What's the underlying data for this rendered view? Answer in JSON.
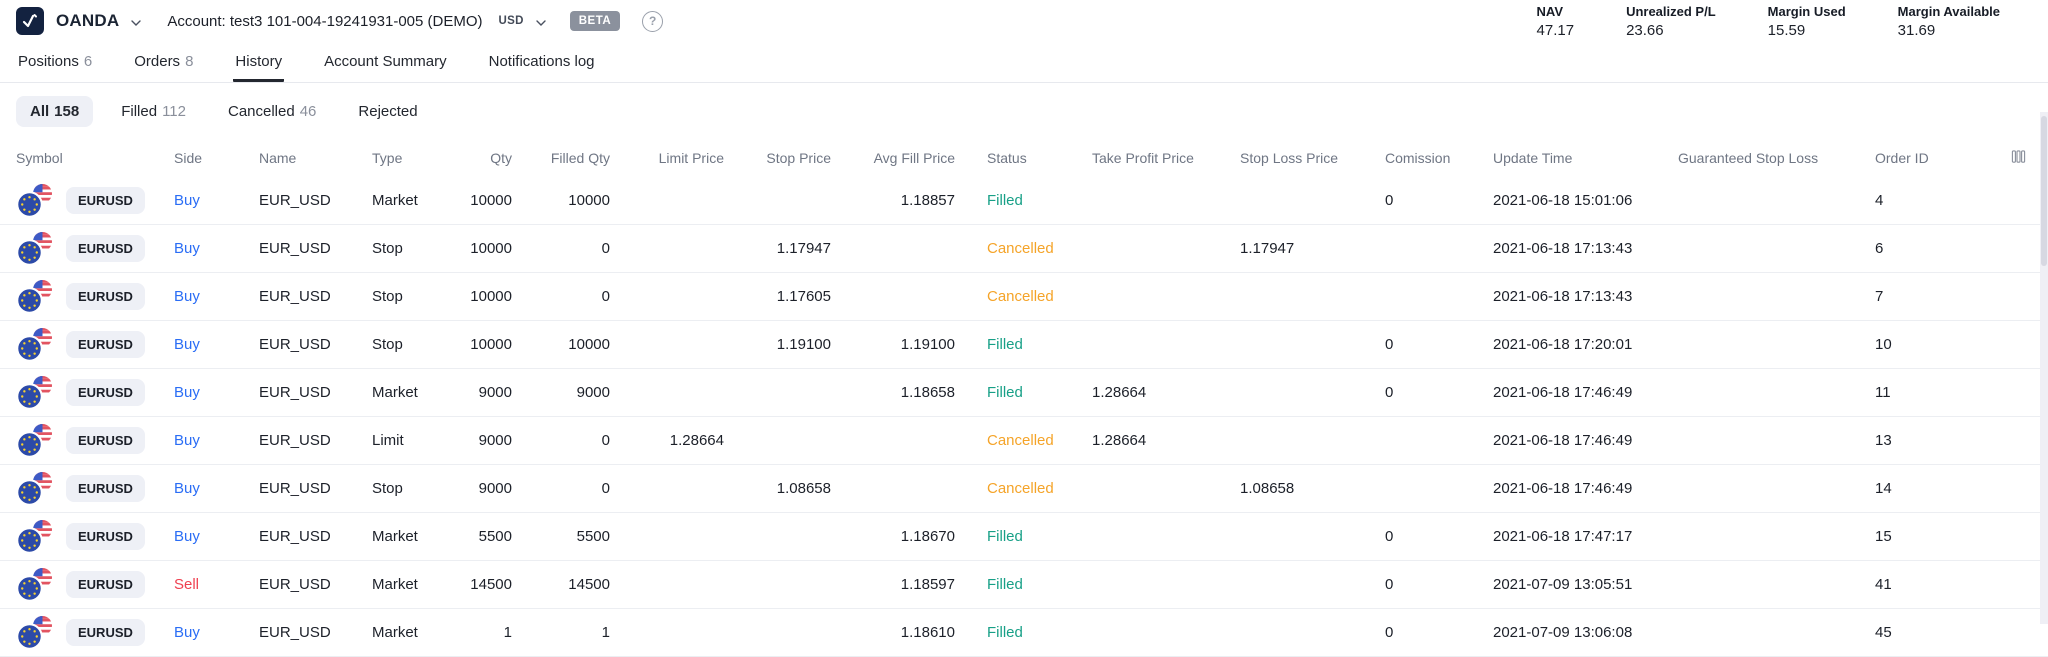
{
  "header": {
    "brand": "OANDA",
    "account_label": "Account: test3 101-004-19241931-005 (DEMO)",
    "currency": "USD",
    "beta_badge": "BETA",
    "help_icon": "?",
    "stats": [
      {
        "label": "NAV",
        "value": "47.17"
      },
      {
        "label": "Unrealized P/L",
        "value": "23.66"
      },
      {
        "label": "Margin Used",
        "value": "15.59"
      },
      {
        "label": "Margin Available",
        "value": "31.69"
      }
    ]
  },
  "tabs": [
    {
      "label": "Positions",
      "count": "6",
      "active": false
    },
    {
      "label": "Orders",
      "count": "8",
      "active": false
    },
    {
      "label": "History",
      "count": "",
      "active": true
    },
    {
      "label": "Account Summary",
      "count": "",
      "active": false
    },
    {
      "label": "Notifications log",
      "count": "",
      "active": false
    }
  ],
  "filters": [
    {
      "label": "All",
      "count": "158",
      "active": true
    },
    {
      "label": "Filled",
      "count": "112",
      "active": false
    },
    {
      "label": "Cancelled",
      "count": "46",
      "active": false
    },
    {
      "label": "Rejected",
      "count": "",
      "active": false
    }
  ],
  "table": {
    "columns": [
      "Symbol",
      "Side",
      "Name",
      "Type",
      "Qty",
      "Filled Qty",
      "Limit Price",
      "Stop Price",
      "Avg Fill Price",
      "Status",
      "Take Profit Price",
      "Stop Loss Price",
      "Comission",
      "Update Time",
      "Guaranteed Stop Loss",
      "Order ID"
    ],
    "columns_icon": "column-settings-icon",
    "rows": [
      {
        "symbol": "EURUSD",
        "side": "Buy",
        "name": "EUR_USD",
        "type": "Market",
        "qty": "10000",
        "filled_qty": "10000",
        "limit_price": "",
        "stop_price": "",
        "avg_fill_price": "1.18857",
        "status": "Filled",
        "take_profit_price": "",
        "stop_loss_price": "",
        "comission": "0",
        "update_time": "2021-06-18 15:01:06",
        "guaranteed_stop_loss": "",
        "order_id": "4"
      },
      {
        "symbol": "EURUSD",
        "side": "Buy",
        "name": "EUR_USD",
        "type": "Stop",
        "qty": "10000",
        "filled_qty": "0",
        "limit_price": "",
        "stop_price": "1.17947",
        "avg_fill_price": "",
        "status": "Cancelled",
        "take_profit_price": "",
        "stop_loss_price": "1.17947",
        "comission": "",
        "update_time": "2021-06-18 17:13:43",
        "guaranteed_stop_loss": "",
        "order_id": "6"
      },
      {
        "symbol": "EURUSD",
        "side": "Buy",
        "name": "EUR_USD",
        "type": "Stop",
        "qty": "10000",
        "filled_qty": "0",
        "limit_price": "",
        "stop_price": "1.17605",
        "avg_fill_price": "",
        "status": "Cancelled",
        "take_profit_price": "",
        "stop_loss_price": "",
        "comission": "",
        "update_time": "2021-06-18 17:13:43",
        "guaranteed_stop_loss": "",
        "order_id": "7"
      },
      {
        "symbol": "EURUSD",
        "side": "Buy",
        "name": "EUR_USD",
        "type": "Stop",
        "qty": "10000",
        "filled_qty": "10000",
        "limit_price": "",
        "stop_price": "1.19100",
        "avg_fill_price": "1.19100",
        "status": "Filled",
        "take_profit_price": "",
        "stop_loss_price": "",
        "comission": "0",
        "update_time": "2021-06-18 17:20:01",
        "guaranteed_stop_loss": "",
        "order_id": "10"
      },
      {
        "symbol": "EURUSD",
        "side": "Buy",
        "name": "EUR_USD",
        "type": "Market",
        "qty": "9000",
        "filled_qty": "9000",
        "limit_price": "",
        "stop_price": "",
        "avg_fill_price": "1.18658",
        "status": "Filled",
        "take_profit_price": "1.28664",
        "stop_loss_price": "",
        "comission": "0",
        "update_time": "2021-06-18 17:46:49",
        "guaranteed_stop_loss": "",
        "order_id": "11"
      },
      {
        "symbol": "EURUSD",
        "side": "Buy",
        "name": "EUR_USD",
        "type": "Limit",
        "qty": "9000",
        "filled_qty": "0",
        "limit_price": "1.28664",
        "stop_price": "",
        "avg_fill_price": "",
        "status": "Cancelled",
        "take_profit_price": "1.28664",
        "stop_loss_price": "",
        "comission": "",
        "update_time": "2021-06-18 17:46:49",
        "guaranteed_stop_loss": "",
        "order_id": "13"
      },
      {
        "symbol": "EURUSD",
        "side": "Buy",
        "name": "EUR_USD",
        "type": "Stop",
        "qty": "9000",
        "filled_qty": "0",
        "limit_price": "",
        "stop_price": "1.08658",
        "avg_fill_price": "",
        "status": "Cancelled",
        "take_profit_price": "",
        "stop_loss_price": "1.08658",
        "comission": "",
        "update_time": "2021-06-18 17:46:49",
        "guaranteed_stop_loss": "",
        "order_id": "14"
      },
      {
        "symbol": "EURUSD",
        "side": "Buy",
        "name": "EUR_USD",
        "type": "Market",
        "qty": "5500",
        "filled_qty": "5500",
        "limit_price": "",
        "stop_price": "",
        "avg_fill_price": "1.18670",
        "status": "Filled",
        "take_profit_price": "",
        "stop_loss_price": "",
        "comission": "0",
        "update_time": "2021-06-18 17:47:17",
        "guaranteed_stop_loss": "",
        "order_id": "15"
      },
      {
        "symbol": "EURUSD",
        "side": "Sell",
        "name": "EUR_USD",
        "type": "Market",
        "qty": "14500",
        "filled_qty": "14500",
        "limit_price": "",
        "stop_price": "",
        "avg_fill_price": "1.18597",
        "status": "Filled",
        "take_profit_price": "",
        "stop_loss_price": "",
        "comission": "0",
        "update_time": "2021-07-09 13:05:51",
        "guaranteed_stop_loss": "",
        "order_id": "41"
      },
      {
        "symbol": "EURUSD",
        "side": "Buy",
        "name": "EUR_USD",
        "type": "Market",
        "qty": "1",
        "filled_qty": "1",
        "limit_price": "",
        "stop_price": "",
        "avg_fill_price": "1.18610",
        "status": "Filled",
        "take_profit_price": "",
        "stop_loss_price": "",
        "comission": "0",
        "update_time": "2021-07-09 13:06:08",
        "guaranteed_stop_loss": "",
        "order_id": "45"
      }
    ]
  },
  "colors": {
    "buy": "#2a6df5",
    "sell": "#ef4050",
    "filled": "#18a087",
    "cancelled": "#f5a429",
    "brand_navy": "#132240",
    "pill_bg": "#eef0f6"
  }
}
